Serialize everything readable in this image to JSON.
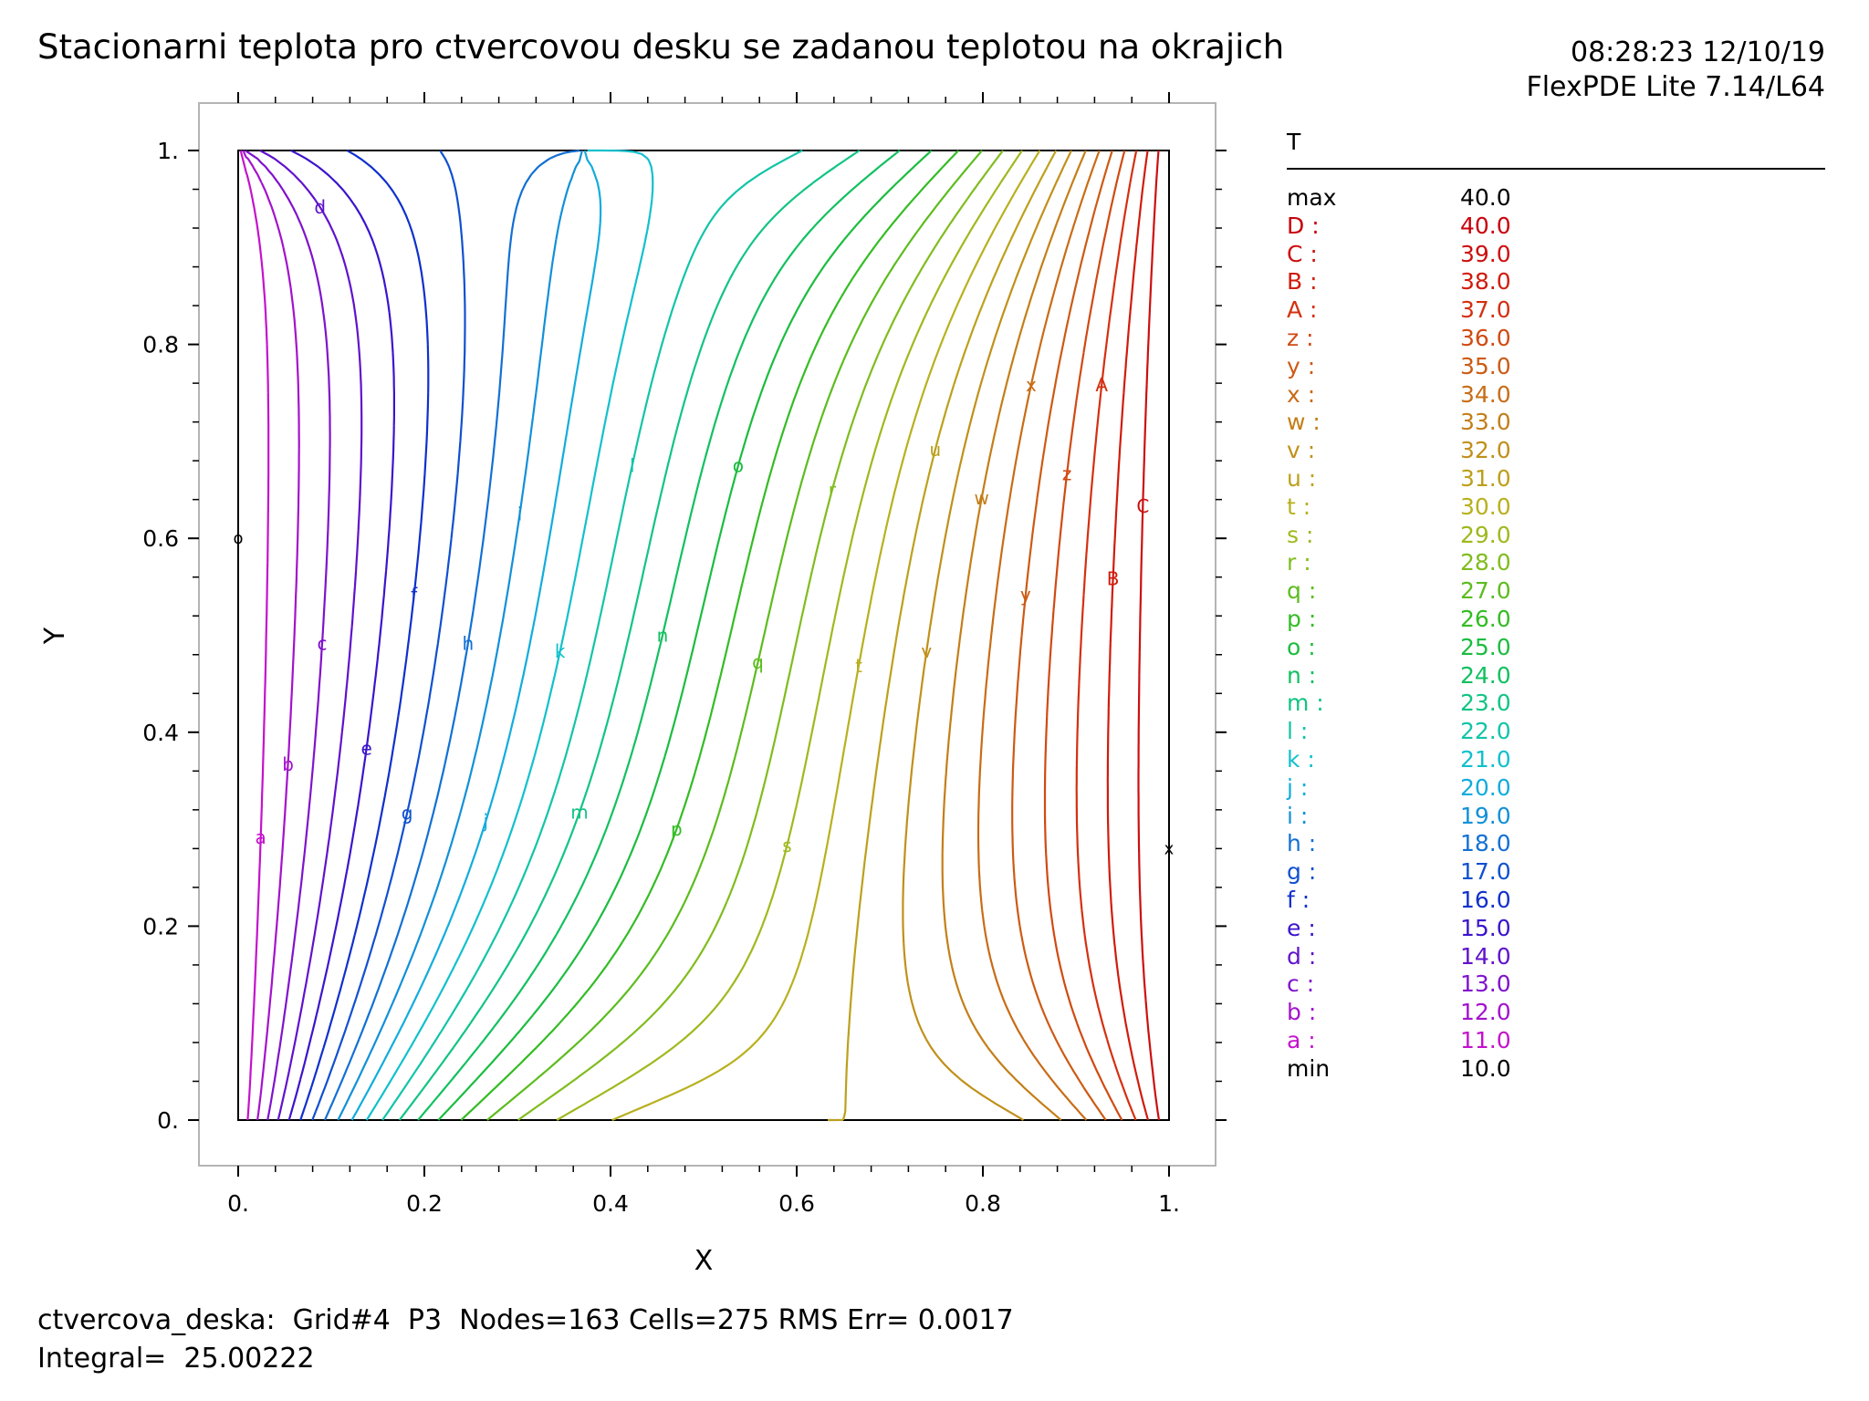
{
  "title": "Stacionarni teplota pro ctvercovou desku se zadanou teplotou na okrajich",
  "timestamp": "08:28:23 12/10/19",
  "program": "FlexPDE Lite 7.14/L64",
  "legend": {
    "variable": "T",
    "max_label": "max",
    "max_value": "40.0",
    "min_label": "min",
    "min_value": "10.0",
    "levels": [
      {
        "label": "D :",
        "value": "40.0",
        "color": "#c8000a"
      },
      {
        "label": "C :",
        "value": "39.0",
        "color": "#cc1010"
      },
      {
        "label": "B :",
        "value": "38.0",
        "color": "#d01c0c"
      },
      {
        "label": "A :",
        "value": "37.0",
        "color": "#d43010"
      },
      {
        "label": "z :",
        "value": "36.0",
        "color": "#d04a12"
      },
      {
        "label": "y :",
        "value": "35.0",
        "color": "#cc5a14"
      },
      {
        "label": "x :",
        "value": "34.0",
        "color": "#c86c16"
      },
      {
        "label": "w :",
        "value": "33.0",
        "color": "#c47e18"
      },
      {
        "label": "v :",
        "value": "32.0",
        "color": "#c0901a"
      },
      {
        "label": "u :",
        "value": "31.0",
        "color": "#bca01c"
      },
      {
        "label": "t :",
        "value": "30.0",
        "color": "#b8b01e"
      },
      {
        "label": "s :",
        "value": "29.0",
        "color": "#a0b81e"
      },
      {
        "label": "r :",
        "value": "28.0",
        "color": "#80bc1e"
      },
      {
        "label": "q :",
        "value": "27.0",
        "color": "#5cbc1e"
      },
      {
        "label": "p :",
        "value": "26.0",
        "color": "#34bc24"
      },
      {
        "label": "o :",
        "value": "25.0",
        "color": "#1cbc40"
      },
      {
        "label": "n :",
        "value": "24.0",
        "color": "#12c060"
      },
      {
        "label": "m :",
        "value": "23.0",
        "color": "#12c484"
      },
      {
        "label": "l :",
        "value": "22.0",
        "color": "#12c4a8"
      },
      {
        "label": "k :",
        "value": "21.0",
        "color": "#12c0cc"
      },
      {
        "label": "j :",
        "value": "20.0",
        "color": "#12acdc"
      },
      {
        "label": "i :",
        "value": "19.0",
        "color": "#1290d8"
      },
      {
        "label": "h :",
        "value": "18.0",
        "color": "#1270d4"
      },
      {
        "label": "g :",
        "value": "17.0",
        "color": "#1050d0"
      },
      {
        "label": "f :",
        "value": "16.0",
        "color": "#1030cc"
      },
      {
        "label": "e :",
        "value": "15.0",
        "color": "#3c14cc"
      },
      {
        "label": "d :",
        "value": "14.0",
        "color": "#6012cc"
      },
      {
        "label": "c :",
        "value": "13.0",
        "color": "#8012cc"
      },
      {
        "label": "b :",
        "value": "12.0",
        "color": "#a412cc"
      },
      {
        "label": "a :",
        "value": "11.0",
        "color": "#c412cc"
      }
    ]
  },
  "footer": {
    "line1": "ctvercova_deska:  Grid#4  P3  Nodes=163 Cells=275 RMS Err= 0.0017",
    "line2": "Integral=  25.00222"
  },
  "chart_data": {
    "type": "contour",
    "xlabel": "X",
    "ylabel": "Y",
    "xlim": [
      0,
      1
    ],
    "ylim": [
      0,
      1
    ],
    "x_ticks": [
      "0.",
      "0.2",
      "0.4",
      "0.6",
      "0.8",
      "1."
    ],
    "y_ticks": [
      "0.",
      "0.2",
      "0.4",
      "0.6",
      "0.8",
      "1."
    ],
    "field": "T",
    "min": 10.0,
    "max": 40.0,
    "levels": [
      11,
      12,
      13,
      14,
      15,
      16,
      17,
      18,
      19,
      20,
      21,
      22,
      23,
      24,
      25,
      26,
      27,
      28,
      29,
      30,
      31,
      32,
      33,
      34,
      35,
      36,
      37,
      38,
      39,
      40
    ],
    "labels": [
      "a",
      "b",
      "c",
      "d",
      "e",
      "f",
      "g",
      "h",
      "i",
      "j",
      "k",
      "l",
      "m",
      "n",
      "o",
      "p",
      "q",
      "r",
      "s",
      "t",
      "u",
      "v",
      "w",
      "x",
      "y",
      "z",
      "A",
      "B",
      "C",
      "D"
    ],
    "marker_min": {
      "symbol": "o",
      "x": 0.0,
      "y": 0.6
    },
    "marker_max": {
      "symbol": "x",
      "x": 1.0,
      "y": 0.28
    }
  }
}
